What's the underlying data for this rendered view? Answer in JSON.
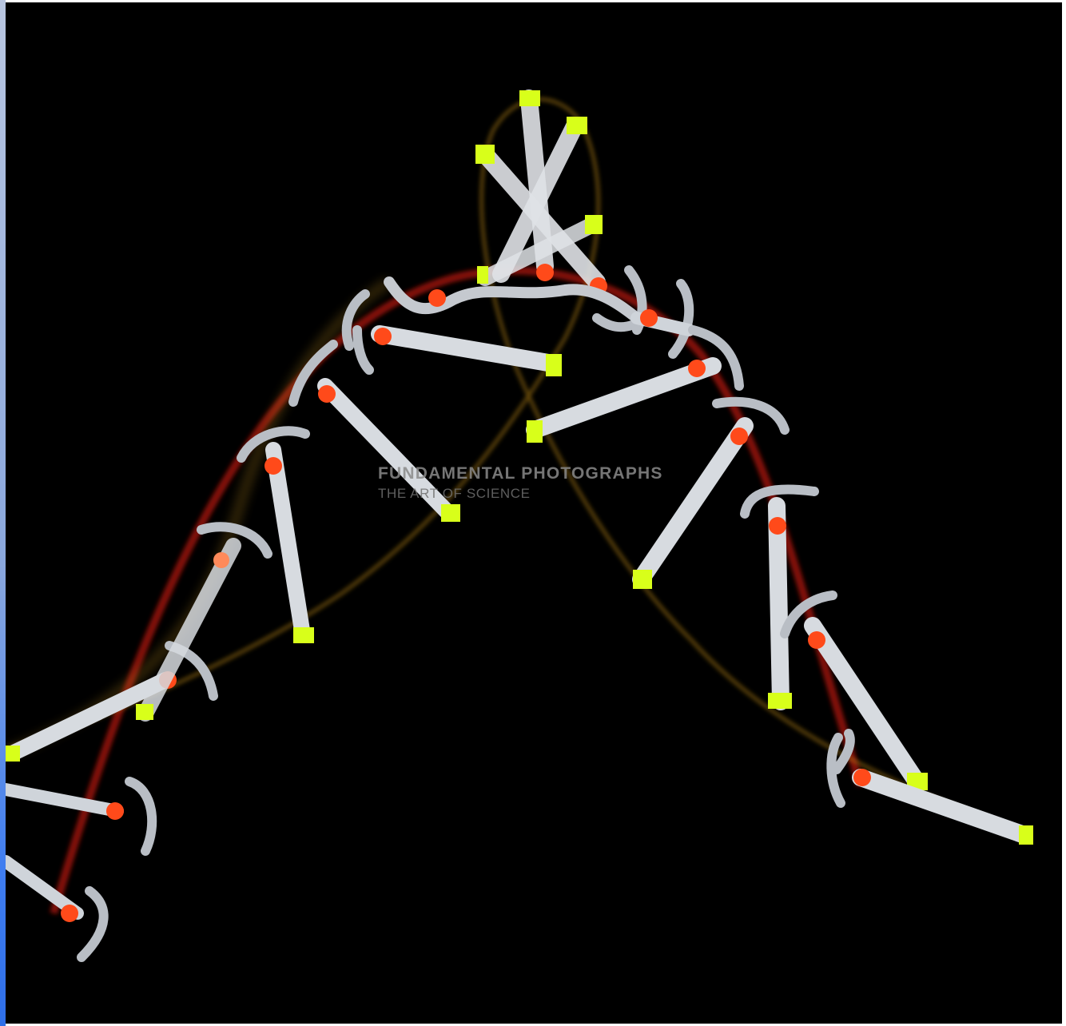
{
  "watermark": {
    "title": "FUNDAMENTAL  PHOTOGRAPHS",
    "subtitle": "THE ART OF SCIENCE"
  },
  "colors": {
    "background": "#000000",
    "handle": "#d7dbe0",
    "end_marker": "#d8ff1a",
    "center_marker": "#ff4a1a",
    "center_trail": "#c01808",
    "end_trail": "#c89018"
  }
}
